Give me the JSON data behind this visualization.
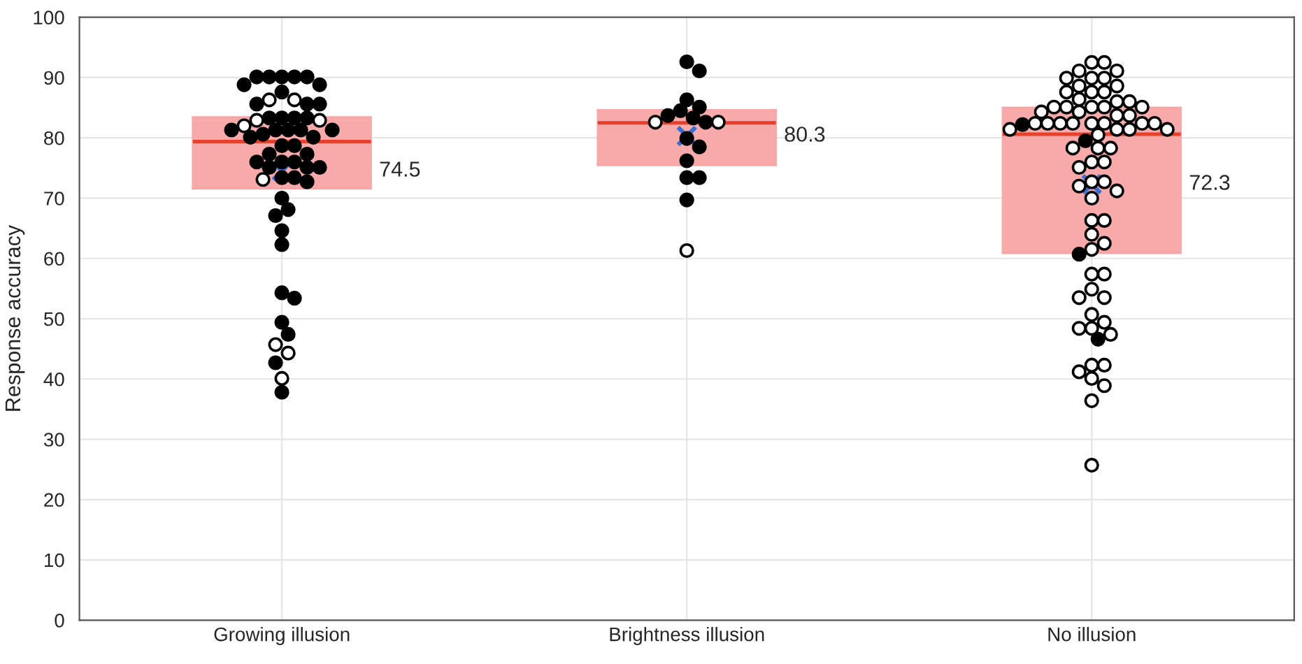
{
  "chart_data": {
    "type": "box",
    "ylabel": "Response accuracy",
    "categories": [
      "Growing illusion",
      "Brightness illusion",
      "No illusion"
    ],
    "ylim": [
      0,
      100
    ],
    "yticks": [
      0,
      10,
      20,
      30,
      40,
      50,
      60,
      70,
      80,
      90,
      100
    ],
    "grid": true,
    "legend": false,
    "series": [
      {
        "color": "#f8a5a5",
        "boxes": [
          {
            "low": 71.6,
            "q1": 71.6,
            "median": 79.4,
            "q3": 83.4,
            "high": 83.4,
            "mean": 74.5
          },
          {
            "low": 75.5,
            "q1": 75.5,
            "median": 82.5,
            "q3": 84.6,
            "high": 84.6,
            "mean": 80.3
          },
          {
            "low": 60.9,
            "q1": 60.9,
            "median": 80.6,
            "q3": 85.0,
            "high": 85.0,
            "mean": 72.3
          }
        ]
      },
      {
        "type": "scatter",
        "color": "#000000",
        "x": [
          "Growing illusion",
          "Growing illusion",
          "Growing illusion",
          "Growing illusion",
          "Growing illusion",
          "Growing illusion",
          "Growing illusion",
          "Growing illusion",
          "Growing illusion",
          "Growing illusion",
          "Growing illusion",
          "Growing illusion",
          "Growing illusion",
          "Growing illusion",
          "Growing illusion",
          "Growing illusion",
          "Growing illusion",
          "Growing illusion",
          "Growing illusion",
          "Growing illusion",
          "Growing illusion",
          "Growing illusion",
          "Growing illusion",
          "Growing illusion",
          "Growing illusion",
          "Growing illusion",
          "Growing illusion",
          "Growing illusion",
          "Growing illusion",
          "Growing illusion",
          "Growing illusion",
          "Growing illusion",
          "Growing illusion",
          "Growing illusion",
          "Growing illusion",
          "Growing illusion",
          "Growing illusion",
          "Growing illusion",
          "Growing illusion",
          "Growing illusion",
          "Growing illusion",
          "Growing illusion",
          "Growing illusion",
          "Growing illusion",
          "Growing illusion",
          "Growing illusion",
          "Growing illusion",
          "Brightness illusion",
          "Brightness illusion",
          "Brightness illusion",
          "Brightness illusion",
          "Brightness illusion",
          "Brightness illusion",
          "Brightness illusion",
          "Brightness illusion",
          "Brightness illusion",
          "Brightness illusion",
          "Brightness illusion",
          "Brightness illusion",
          "Brightness illusion",
          "Brightness illusion",
          "No illusion",
          "No illusion",
          "No illusion",
          "No illusion"
        ],
        "values": [
          90.1,
          90.1,
          90.1,
          90.1,
          90.1,
          88.8,
          88.8,
          87.6,
          85.6,
          85.6,
          85.6,
          83.3,
          83.3,
          83.3,
          83.3,
          81.3,
          81.3,
          81.3,
          81.3,
          81.3,
          80.6,
          80.1,
          80.1,
          78.7,
          78.7,
          77.3,
          77.3,
          76.0,
          76.0,
          76.0,
          75.1,
          75.1,
          75.1,
          73.4,
          73.4,
          72.7,
          70.0,
          68.1,
          67.1,
          64.6,
          62.3,
          54.3,
          53.4,
          49.4,
          47.4,
          42.7,
          37.8,
          92.6,
          91.1,
          86.3,
          85.1,
          84.5,
          83.7,
          83.3,
          82.6,
          79.9,
          78.5,
          76.2,
          73.4,
          73.4,
          69.7,
          82.2,
          79.5,
          60.7,
          46.6
        ]
      },
      {
        "type": "scatter",
        "color": "#ffffff",
        "x": [
          "Growing illusion",
          "Growing illusion",
          "Growing illusion",
          "Growing illusion",
          "Growing illusion",
          "Growing illusion",
          "Growing illusion",
          "Growing illusion",
          "Growing illusion",
          "Brightness illusion",
          "Brightness illusion",
          "Brightness illusion",
          "No illusion",
          "No illusion",
          "No illusion",
          "No illusion",
          "No illusion",
          "No illusion",
          "No illusion",
          "No illusion",
          "No illusion",
          "No illusion",
          "No illusion",
          "No illusion",
          "No illusion",
          "No illusion",
          "No illusion",
          "No illusion",
          "No illusion",
          "No illusion",
          "No illusion",
          "No illusion",
          "No illusion",
          "No illusion",
          "No illusion",
          "No illusion",
          "No illusion",
          "No illusion",
          "No illusion",
          "No illusion",
          "No illusion",
          "No illusion",
          "No illusion",
          "No illusion",
          "No illusion",
          "No illusion",
          "No illusion",
          "No illusion",
          "No illusion",
          "No illusion",
          "No illusion",
          "No illusion",
          "No illusion",
          "No illusion",
          "No illusion",
          "No illusion",
          "No illusion",
          "No illusion",
          "No illusion",
          "No illusion",
          "No illusion",
          "No illusion",
          "No illusion",
          "No illusion",
          "No illusion",
          "No illusion",
          "No illusion",
          "No illusion",
          "No illusion",
          "No illusion",
          "No illusion",
          "No illusion",
          "No illusion",
          "No illusion",
          "No illusion",
          "No illusion",
          "No illusion",
          "No illusion",
          "No illusion",
          "No illusion",
          "No illusion",
          "No illusion"
        ],
        "values": [
          86.3,
          86.3,
          82.9,
          82.9,
          82.0,
          73.1,
          45.7,
          44.3,
          40.1,
          82.6,
          82.6,
          61.3,
          92.5,
          92.5,
          91.1,
          91.1,
          89.9,
          89.9,
          89.9,
          88.6,
          88.6,
          87.6,
          87.6,
          87.6,
          86.4,
          86.0,
          86.0,
          85.1,
          85.1,
          85.1,
          85.1,
          85.1,
          84.3,
          84.3,
          83.7,
          83.7,
          82.4,
          82.4,
          82.4,
          82.4,
          82.4,
          82.4,
          82.4,
          82.4,
          81.4,
          81.4,
          81.4,
          81.4,
          80.5,
          78.3,
          78.3,
          78.3,
          76.0,
          76.0,
          75.1,
          72.7,
          72.7,
          72.0,
          71.2,
          70.0,
          66.3,
          66.3,
          64.0,
          62.5,
          61.5,
          57.4,
          57.4,
          54.9,
          53.5,
          53.5,
          50.7,
          49.4,
          48.4,
          48.4,
          47.4,
          42.3,
          42.3,
          41.2,
          40.1,
          38.9,
          36.4,
          25.7
        ]
      }
    ],
    "annotations": [
      "74.5",
      "80.3",
      "72.3"
    ]
  }
}
